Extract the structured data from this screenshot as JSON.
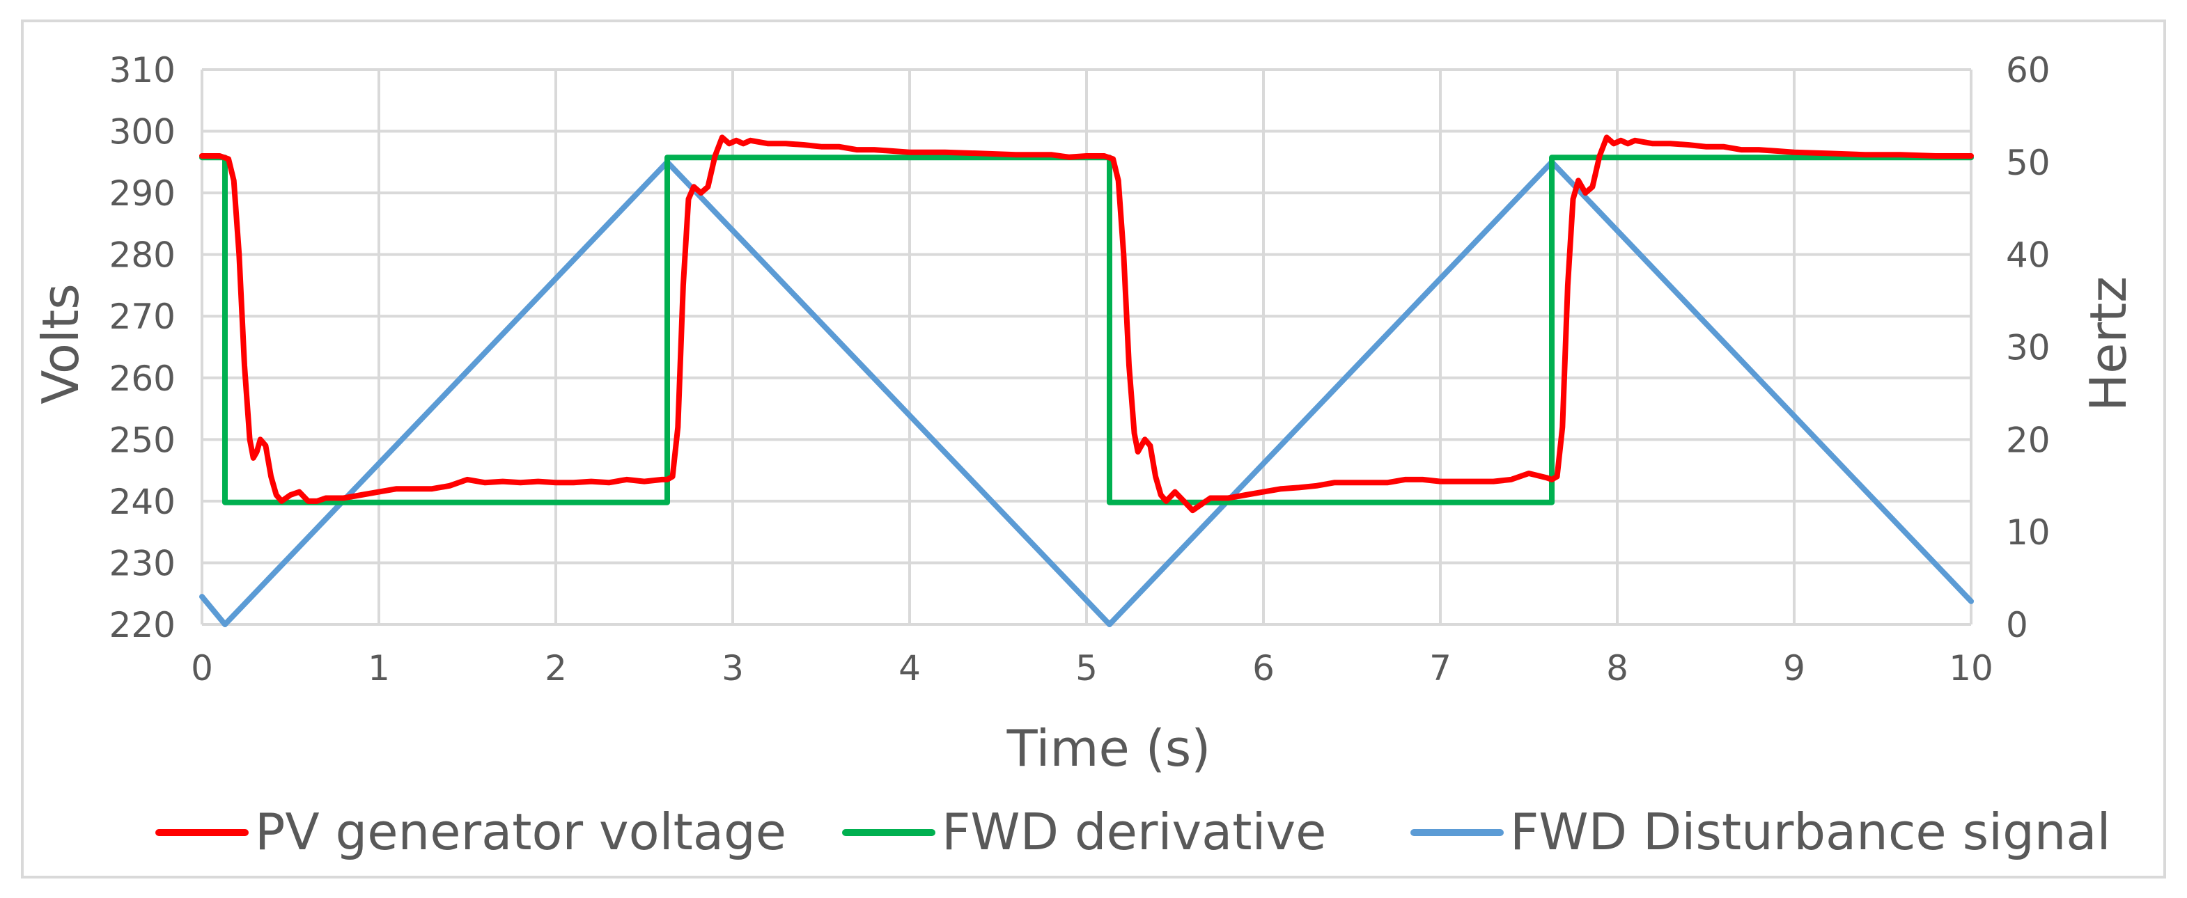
{
  "chart_data": {
    "type": "line",
    "xlabel": "Time (s)",
    "ylabel": "Volts",
    "y2label": "Hertz",
    "xlim": [
      0,
      10
    ],
    "ylim": [
      220,
      310
    ],
    "y2lim": [
      0,
      60
    ],
    "x_ticks": [
      "0",
      "1",
      "2",
      "3",
      "4",
      "5",
      "6",
      "7",
      "8",
      "9",
      "10"
    ],
    "y_ticks": [
      "220",
      "230",
      "240",
      "250",
      "260",
      "270",
      "280",
      "290",
      "300",
      "310"
    ],
    "y2_ticks": [
      "0",
      "10",
      "20",
      "30",
      "40",
      "50",
      "60"
    ],
    "grid": true,
    "legend_position": "bottom",
    "series": [
      {
        "name": "PV generator voltage",
        "axis": "left",
        "color": "#ff0000",
        "points": [
          [
            0,
            296
          ],
          [
            0.1,
            296
          ],
          [
            0.15,
            295.5
          ],
          [
            0.18,
            292
          ],
          [
            0.21,
            280
          ],
          [
            0.24,
            262
          ],
          [
            0.27,
            250
          ],
          [
            0.29,
            247
          ],
          [
            0.31,
            248
          ],
          [
            0.33,
            250
          ],
          [
            0.36,
            249
          ],
          [
            0.39,
            244
          ],
          [
            0.42,
            241
          ],
          [
            0.45,
            240
          ],
          [
            0.5,
            241
          ],
          [
            0.55,
            241.5
          ],
          [
            0.6,
            240
          ],
          [
            0.65,
            240
          ],
          [
            0.7,
            240.5
          ],
          [
            0.8,
            240.5
          ],
          [
            0.9,
            241
          ],
          [
            1.0,
            241.5
          ],
          [
            1.1,
            242
          ],
          [
            1.2,
            242
          ],
          [
            1.3,
            242
          ],
          [
            1.4,
            242.5
          ],
          [
            1.5,
            243.5
          ],
          [
            1.6,
            243
          ],
          [
            1.7,
            243.2
          ],
          [
            1.8,
            243
          ],
          [
            1.9,
            243.2
          ],
          [
            2.0,
            243
          ],
          [
            2.1,
            243
          ],
          [
            2.2,
            243.2
          ],
          [
            2.3,
            243
          ],
          [
            2.4,
            243.5
          ],
          [
            2.5,
            243.2
          ],
          [
            2.6,
            243.5
          ],
          [
            2.63,
            243.5
          ],
          [
            2.66,
            244
          ],
          [
            2.69,
            252
          ],
          [
            2.72,
            275
          ],
          [
            2.75,
            289
          ],
          [
            2.78,
            291
          ],
          [
            2.82,
            290
          ],
          [
            2.86,
            291
          ],
          [
            2.9,
            296
          ],
          [
            2.94,
            299
          ],
          [
            2.98,
            298
          ],
          [
            3.02,
            298.5
          ],
          [
            3.06,
            298
          ],
          [
            3.1,
            298.5
          ],
          [
            3.2,
            298
          ],
          [
            3.3,
            298
          ],
          [
            3.4,
            297.8
          ],
          [
            3.5,
            297.5
          ],
          [
            3.6,
            297.5
          ],
          [
            3.7,
            297
          ],
          [
            3.8,
            297
          ],
          [
            3.9,
            296.8
          ],
          [
            4.0,
            296.6
          ],
          [
            4.2,
            296.6
          ],
          [
            4.4,
            296.4
          ],
          [
            4.6,
            296.2
          ],
          [
            4.8,
            296.2
          ],
          [
            4.9,
            295.8
          ],
          [
            5.0,
            296
          ],
          [
            5.1,
            296
          ],
          [
            5.15,
            295.5
          ],
          [
            5.18,
            292
          ],
          [
            5.21,
            280
          ],
          [
            5.24,
            262
          ],
          [
            5.27,
            251
          ],
          [
            5.29,
            248
          ],
          [
            5.31,
            249
          ],
          [
            5.33,
            250
          ],
          [
            5.36,
            249
          ],
          [
            5.39,
            244
          ],
          [
            5.42,
            241
          ],
          [
            5.45,
            240
          ],
          [
            5.5,
            241.5
          ],
          [
            5.55,
            240
          ],
          [
            5.6,
            238.5
          ],
          [
            5.65,
            239.5
          ],
          [
            5.7,
            240.5
          ],
          [
            5.8,
            240.5
          ],
          [
            5.9,
            241
          ],
          [
            6.0,
            241.5
          ],
          [
            6.1,
            242
          ],
          [
            6.2,
            242.2
          ],
          [
            6.3,
            242.5
          ],
          [
            6.4,
            243
          ],
          [
            6.5,
            243
          ],
          [
            6.6,
            243
          ],
          [
            6.7,
            243
          ],
          [
            6.8,
            243.5
          ],
          [
            6.9,
            243.5
          ],
          [
            7.0,
            243.2
          ],
          [
            7.1,
            243.2
          ],
          [
            7.2,
            243.2
          ],
          [
            7.3,
            243.2
          ],
          [
            7.4,
            243.5
          ],
          [
            7.5,
            244.5
          ],
          [
            7.6,
            243.8
          ],
          [
            7.63,
            243.5
          ],
          [
            7.66,
            244
          ],
          [
            7.69,
            252
          ],
          [
            7.72,
            275
          ],
          [
            7.75,
            289
          ],
          [
            7.78,
            292
          ],
          [
            7.82,
            290
          ],
          [
            7.86,
            291
          ],
          [
            7.9,
            296
          ],
          [
            7.94,
            299
          ],
          [
            7.98,
            298
          ],
          [
            8.02,
            298.5
          ],
          [
            8.06,
            298
          ],
          [
            8.1,
            298.5
          ],
          [
            8.2,
            298
          ],
          [
            8.3,
            298
          ],
          [
            8.4,
            297.8
          ],
          [
            8.5,
            297.5
          ],
          [
            8.6,
            297.5
          ],
          [
            8.7,
            297
          ],
          [
            8.8,
            297
          ],
          [
            8.9,
            296.8
          ],
          [
            9.0,
            296.6
          ],
          [
            9.2,
            296.4
          ],
          [
            9.4,
            296.2
          ],
          [
            9.6,
            296.2
          ],
          [
            9.8,
            296
          ],
          [
            10.0,
            296
          ]
        ]
      },
      {
        "name": "FWD derivative",
        "axis": "right",
        "color": "#00b050",
        "points": [
          [
            0,
            50.5
          ],
          [
            0.13,
            50.5
          ],
          [
            0.13,
            13.2
          ],
          [
            2.63,
            13.2
          ],
          [
            2.63,
            50.5
          ],
          [
            5.13,
            50.5
          ],
          [
            5.13,
            13.2
          ],
          [
            7.63,
            13.2
          ],
          [
            7.63,
            50.5
          ],
          [
            10,
            50.5
          ]
        ]
      },
      {
        "name": "FWD Disturbance signal",
        "axis": "right",
        "color": "#5b9bd5",
        "points": [
          [
            0,
            3
          ],
          [
            0.13,
            0
          ],
          [
            2.63,
            50
          ],
          [
            5.13,
            0
          ],
          [
            7.63,
            50
          ],
          [
            10,
            2.5
          ]
        ]
      }
    ]
  }
}
